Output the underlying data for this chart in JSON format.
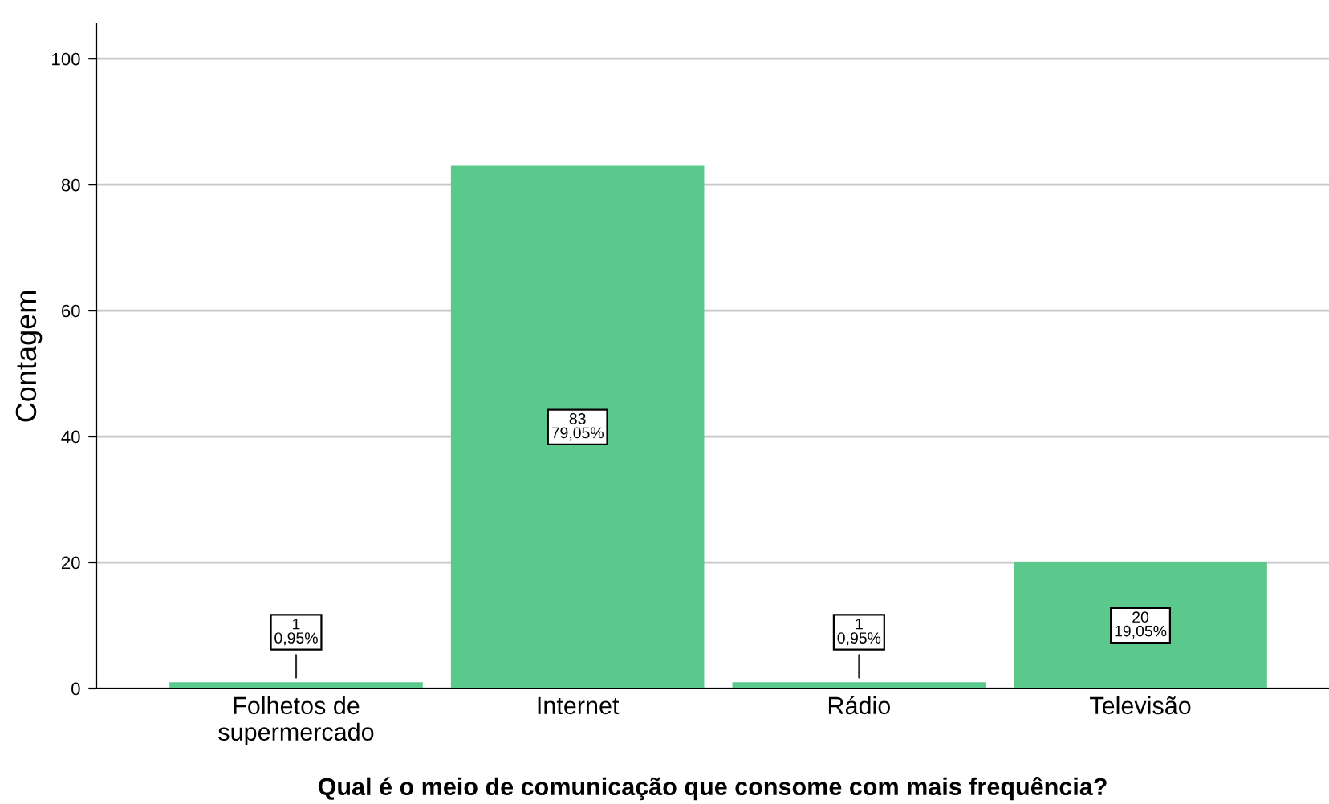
{
  "chart_data": {
    "type": "bar",
    "xlabel": "Qual é o meio de comunicação que consome com mais frequência?",
    "ylabel": "Contagem",
    "categories": [
      "Folhetos de\nsupermercado",
      "Internet",
      "Rádio",
      "Televisão"
    ],
    "values": [
      1,
      83,
      1,
      20
    ],
    "color": "#5bc98b",
    "value_labels": [
      "1\n0,95%",
      "83\n79,05%",
      "1\n0,95%",
      "20\n19,05%"
    ],
    "ylim": [
      0,
      105.5
    ],
    "yticks": [
      0,
      20,
      40,
      60,
      80,
      100
    ],
    "grid": "y"
  }
}
